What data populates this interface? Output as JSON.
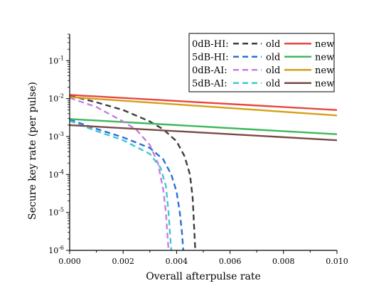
{
  "chart_data": {
    "type": "line",
    "title": "",
    "xlabel": "Overall afterpulse rate",
    "ylabel": "Secure key rate (per pulse)",
    "xlim": [
      0.0,
      0.01
    ],
    "ylim": [
      1e-06,
      0.5
    ],
    "yscale": "log",
    "grid": false,
    "legend_position": "top-right",
    "x_ticks": [
      {
        "value": 0.0,
        "label": "0.000"
      },
      {
        "value": 0.002,
        "label": "0.002"
      },
      {
        "value": 0.004,
        "label": "0.004"
      },
      {
        "value": 0.006,
        "label": "0.006"
      },
      {
        "value": 0.008,
        "label": "0.008"
      },
      {
        "value": 0.01,
        "label": "0.010"
      }
    ],
    "y_ticks": [
      {
        "value": 1e-06,
        "base": "10",
        "exp": "-6"
      },
      {
        "value": 1e-05,
        "base": "10",
        "exp": "-5"
      },
      {
        "value": 0.0001,
        "base": "10",
        "exp": "-4"
      },
      {
        "value": 0.001,
        "base": "10",
        "exp": "-3"
      },
      {
        "value": 0.01,
        "base": "10",
        "exp": "-2"
      },
      {
        "value": 0.1,
        "base": "10",
        "exp": "-1"
      }
    ],
    "legend_rows": [
      {
        "label": "0dB-HI:",
        "old_label": "old",
        "new_label": "new",
        "old_series": 0,
        "new_series": 1
      },
      {
        "label": "5dB-HI:",
        "old_label": "old",
        "new_label": "new",
        "old_series": 2,
        "new_series": 3
      },
      {
        "label": "0dB-AI:",
        "old_label": "old",
        "new_label": "new",
        "old_series": 4,
        "new_series": 5
      },
      {
        "label": "5dB-AI:",
        "old_label": "old",
        "new_label": "new",
        "old_series": 6,
        "new_series": 7
      }
    ],
    "series": [
      {
        "group": "0dB-HI:",
        "kind": "old",
        "color": "#3d3d3d",
        "dashed": true,
        "x": [
          0.0,
          0.001,
          0.002,
          0.003,
          0.0035,
          0.004,
          0.0043,
          0.0045,
          0.0046,
          0.00465,
          0.0047
        ],
        "y": [
          0.012,
          0.008,
          0.005,
          0.0025,
          0.00155,
          0.00075,
          0.0003,
          0.0001,
          2.5e-05,
          5e-06,
          1e-06
        ]
      },
      {
        "group": "0dB-HI:",
        "kind": "new",
        "color": "#e8463f",
        "dashed": false,
        "x": [
          0.0,
          0.01
        ],
        "y": [
          0.0125,
          0.005
        ]
      },
      {
        "group": "5dB-HI:",
        "kind": "old",
        "color": "#2a6fd8",
        "dashed": true,
        "x": [
          0.0,
          0.001,
          0.002,
          0.003,
          0.0035,
          0.0038,
          0.004,
          0.00412,
          0.0042,
          0.00425
        ],
        "y": [
          0.0028,
          0.0016,
          0.00095,
          0.0005,
          0.00025,
          0.0001,
          3.5e-05,
          1e-05,
          3e-06,
          1e-06
        ]
      },
      {
        "group": "5dB-HI:",
        "kind": "new",
        "color": "#3cb85c",
        "dashed": false,
        "x": [
          0.0,
          0.01
        ],
        "y": [
          0.0029,
          0.00115
        ]
      },
      {
        "group": "0dB-AI:",
        "kind": "old",
        "color": "#c77ee0",
        "dashed": true,
        "x": [
          0.0,
          0.001,
          0.002,
          0.0025,
          0.003,
          0.0033,
          0.0035,
          0.0036,
          0.00365,
          0.0037
        ],
        "y": [
          0.0105,
          0.006,
          0.0025,
          0.0015,
          0.0006,
          0.0002,
          4e-05,
          1e-05,
          3e-06,
          1e-06
        ]
      },
      {
        "group": "0dB-AI:",
        "kind": "new",
        "color": "#d4a017",
        "dashed": false,
        "x": [
          0.0,
          0.01
        ],
        "y": [
          0.011,
          0.0036
        ]
      },
      {
        "group": "5dB-AI:",
        "kind": "old",
        "color": "#3cc8d8",
        "dashed": true,
        "x": [
          0.0,
          0.001,
          0.002,
          0.003,
          0.0034,
          0.0036,
          0.0037,
          0.00375,
          0.0038
        ],
        "y": [
          0.0026,
          0.0014,
          0.0008,
          0.00035,
          0.00015,
          5e-05,
          1e-05,
          3e-06,
          1e-06
        ]
      },
      {
        "group": "5dB-AI:",
        "kind": "new",
        "color": "#7a4a45",
        "dashed": false,
        "x": [
          0.0,
          0.01
        ],
        "y": [
          0.002,
          0.0008
        ]
      }
    ]
  }
}
